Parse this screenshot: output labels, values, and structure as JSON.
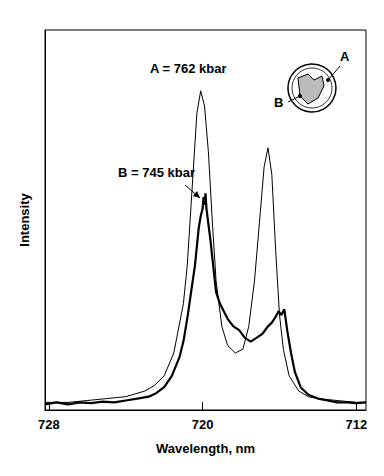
{
  "chart_data": {
    "type": "line",
    "x_label": "Wavelength, nm",
    "y_label": "Intensity",
    "xlim": [
      728.2,
      711.5
    ],
    "xticks": [
      728,
      720,
      712
    ],
    "ylim": [
      0,
      100
    ],
    "tick_labels": "x",
    "grid": false,
    "series": [
      {
        "name": "A = 762 kbar",
        "color": "#000000",
        "line_style": "solid",
        "x": [
          728.2,
          727,
          726,
          725,
          724,
          723,
          722.5,
          722,
          721.5,
          721,
          720.8,
          720.5,
          720.3,
          720.1,
          719.9,
          719.7,
          719.5,
          719.3,
          719,
          718.7,
          718.3,
          717.9,
          717.6,
          717.3,
          717,
          716.8,
          716.6,
          716.4,
          716.2,
          716,
          715.8,
          715.5,
          715,
          714.5,
          714,
          713,
          712,
          711.5
        ],
        "values": [
          2,
          2,
          2.5,
          3,
          3.5,
          5,
          6.5,
          9,
          15,
          28,
          38,
          62,
          78,
          84,
          80,
          68,
          50,
          34,
          22,
          17,
          15,
          16,
          22,
          34,
          52,
          64,
          69,
          62,
          42,
          25,
          16,
          9,
          5,
          3.5,
          3,
          2.5,
          2,
          2
        ]
      },
      {
        "name": "B = 745 kbar",
        "color": "#000000",
        "line_style": "solid",
        "x": [
          728.2,
          727.6,
          727,
          726.4,
          725.8,
          725.2,
          724.6,
          724,
          723.4,
          722.8,
          722.4,
          722,
          721.6,
          721.2,
          721,
          720.8,
          720.6,
          720.4,
          720.3,
          720.2,
          720.1,
          720,
          719.95,
          719.9,
          719.85,
          719.8,
          719.7,
          719.6,
          719.45,
          719.3,
          719.1,
          718.9,
          718.7,
          718.4,
          718.1,
          717.8,
          717.5,
          717.2,
          716.9,
          716.6,
          716.4,
          716.2,
          716.05,
          715.9,
          715.75,
          715.6,
          715.4,
          715.2,
          714.9,
          714.5,
          714,
          713.5,
          713,
          712.5,
          712,
          711.5
        ],
        "values": [
          1.5,
          2,
          1.5,
          2,
          1.8,
          2.2,
          2,
          2.5,
          3,
          3.5,
          4.5,
          6,
          9,
          14,
          18,
          24,
          31,
          38,
          43,
          48,
          51,
          53,
          56,
          54,
          57,
          53,
          49,
          45,
          38,
          31,
          28,
          26,
          24,
          22,
          21,
          19,
          18,
          19,
          20,
          22,
          23,
          24.5,
          26,
          25,
          26.5,
          21,
          15,
          10,
          6,
          4,
          3,
          2.5,
          2,
          2,
          1.8,
          2
        ]
      }
    ],
    "inset": {
      "labels": [
        "A",
        "B"
      ]
    }
  }
}
